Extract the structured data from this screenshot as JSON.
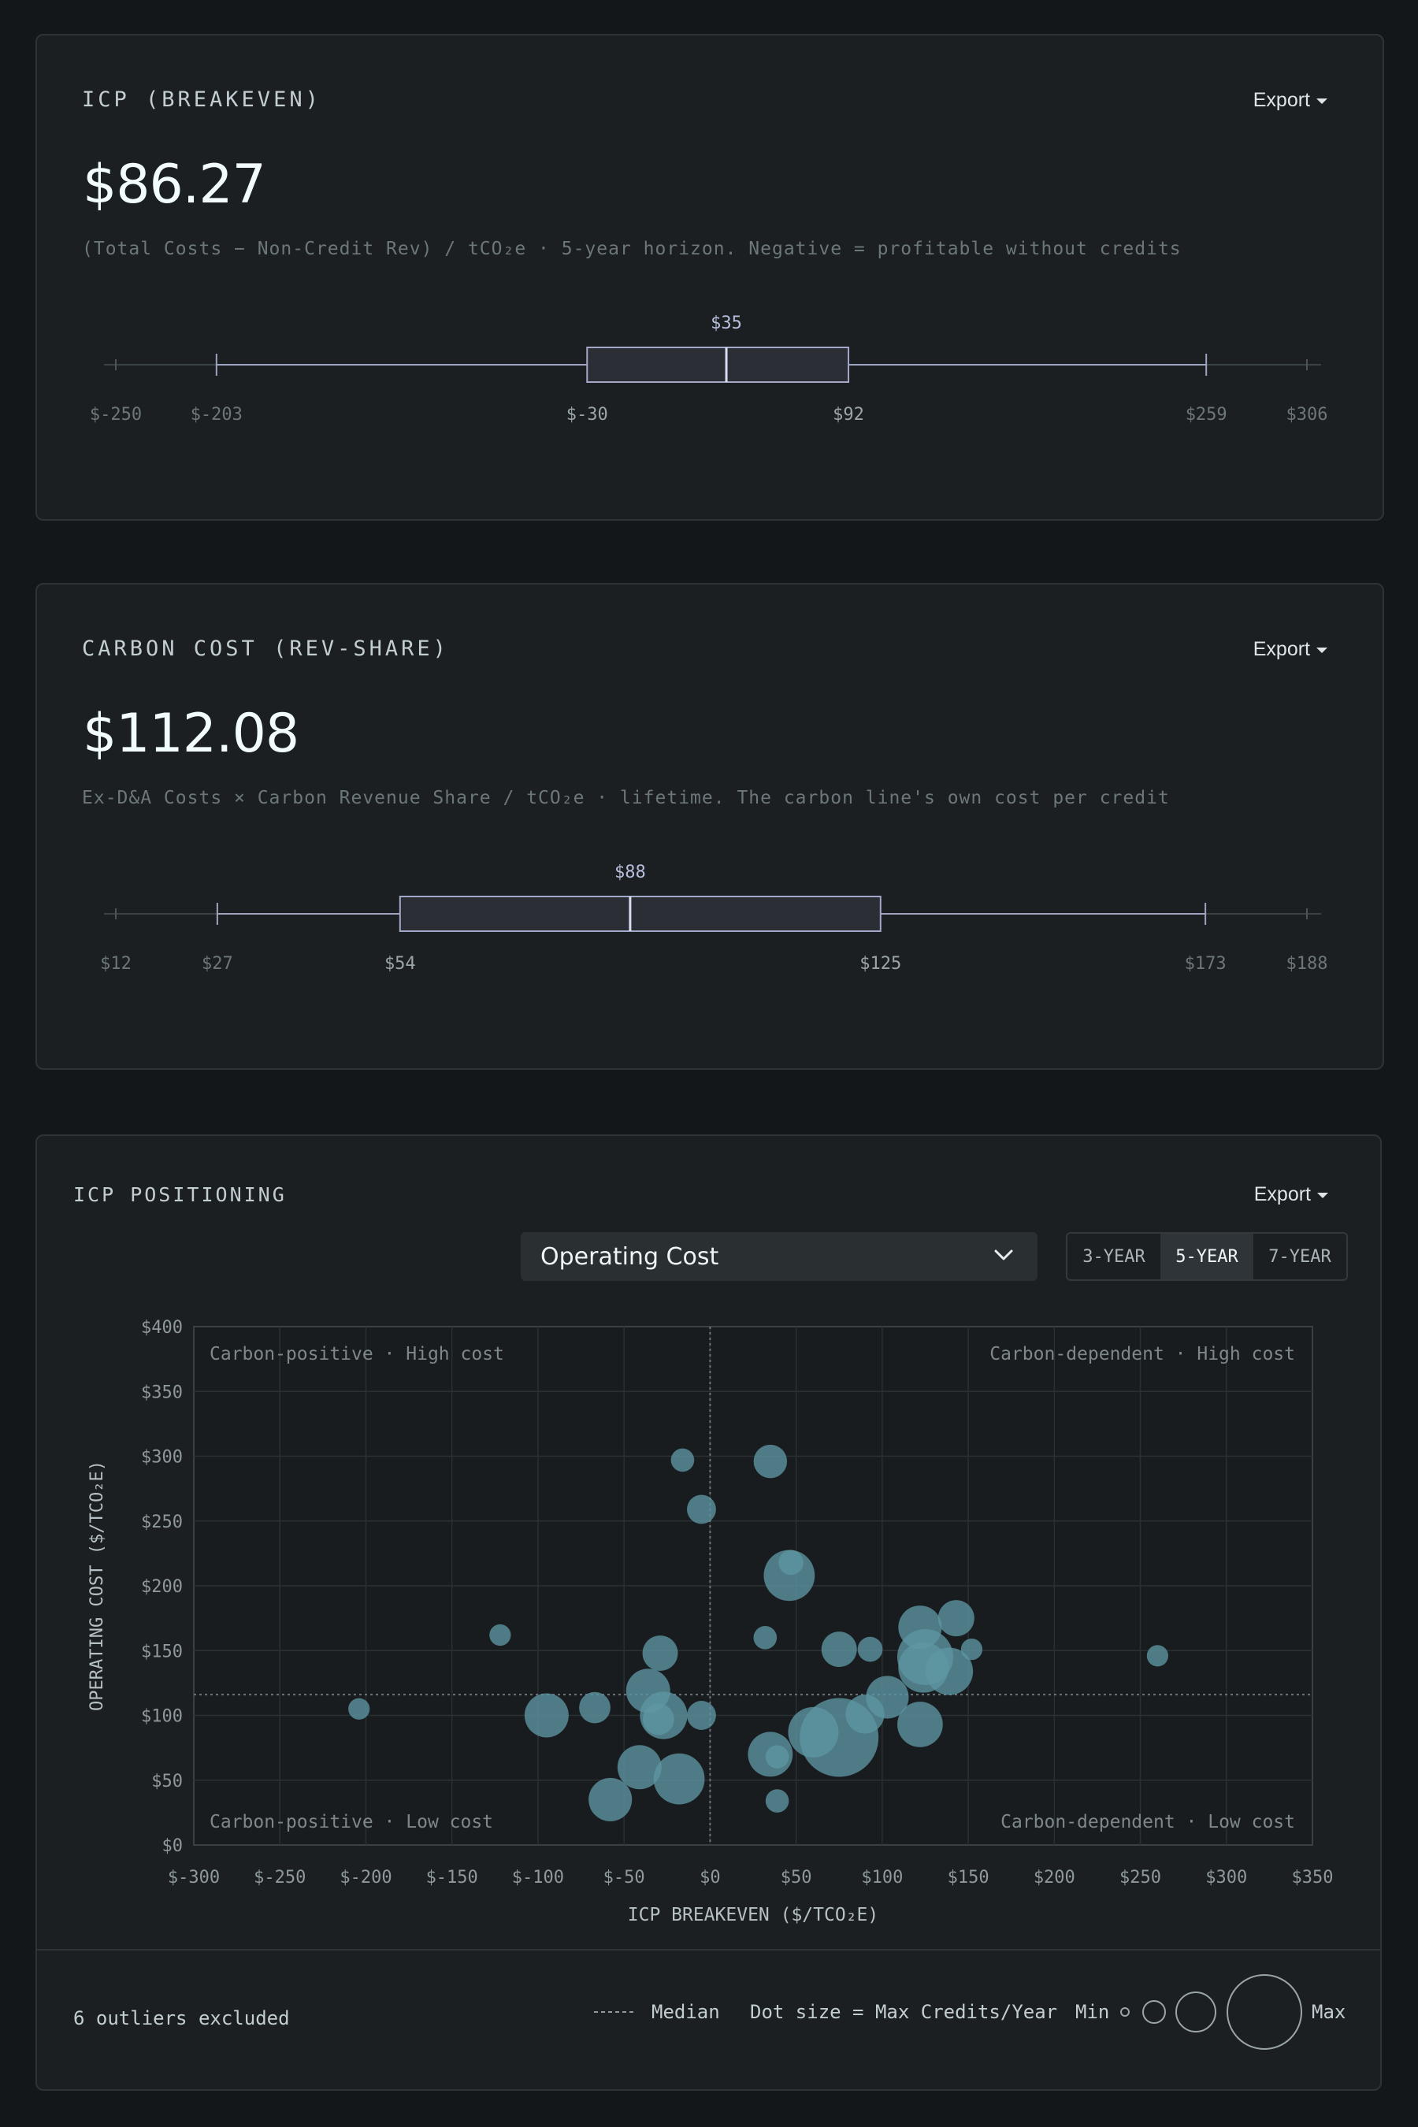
{
  "card1": {
    "title": "ICP (BREAKEVEN)",
    "export_label": "Export",
    "value": "$86.27",
    "subtitle": "(Total Costs − Non-Credit Rev) / tCO₂e · 5-year horizon. Negative = profitable without credits"
  },
  "card2": {
    "title": "CARBON COST (REV-SHARE)",
    "export_label": "Export",
    "value": "$112.08",
    "subtitle": "Ex-D&A Costs × Carbon Revenue Share / tCO₂e · lifetime. The carbon line's own cost per credit"
  },
  "card3": {
    "title": "ICP POSITIONING",
    "export_label": "Export",
    "dropdown_value": "Operating Cost",
    "horizons": [
      "3-YEAR",
      "5-YEAR",
      "7-YEAR"
    ],
    "active_horizon": "5-YEAR",
    "outliers_text": "6 outliers excluded",
    "legend": {
      "median_label": "Median",
      "size_label": "Dot size = Max Credits/Year",
      "min_label": "Min",
      "max_label": "Max"
    }
  },
  "chart_data": [
    {
      "type": "boxplot",
      "title": "ICP (BREAKEVEN)",
      "min": -250,
      "whisker_low": -203,
      "q1": -30,
      "median": 35,
      "q3": 92,
      "whisker_high": 259,
      "max": 306,
      "tick_labels": [
        "$-250",
        "$-203",
        "$-30",
        "$92",
        "$259",
        "$306"
      ],
      "median_label": "$35"
    },
    {
      "type": "boxplot",
      "title": "CARBON COST (REV-SHARE)",
      "min": 12,
      "whisker_low": 27,
      "q1": 54,
      "median": 88,
      "q3": 125,
      "whisker_high": 173,
      "max": 188,
      "tick_labels": [
        "$12",
        "$27",
        "$54",
        "$125",
        "$173",
        "$188"
      ],
      "median_label": "$88"
    },
    {
      "type": "scatter",
      "title": "ICP POSITIONING",
      "xlabel": "ICP BREAKEVEN ($/TCO₂E)",
      "ylabel": "OPERATING COST ($/TCO₂E)",
      "xlim": [
        -300,
        350
      ],
      "ylim": [
        0,
        400
      ],
      "xticks": [
        -300,
        -250,
        -200,
        -150,
        -100,
        -50,
        0,
        50,
        100,
        150,
        200,
        250,
        300,
        350
      ],
      "xtick_labels": [
        "$-300",
        "$-250",
        "$-200",
        "$-150",
        "$-100",
        "$-50",
        "$0",
        "$50",
        "$100",
        "$150",
        "$200",
        "$250",
        "$300",
        "$350"
      ],
      "yticks": [
        0,
        50,
        100,
        150,
        200,
        250,
        300,
        350,
        400
      ],
      "ytick_labels": [
        "$0",
        "$50",
        "$100",
        "$150",
        "$200",
        "$250",
        "$300",
        "$350",
        "$400"
      ],
      "grid": true,
      "median_x": 0,
      "median_y": 116,
      "quadrants": {
        "top_left": "Carbon-positive · High cost",
        "top_right": "Carbon-dependent · High cost",
        "bottom_left": "Carbon-positive · Low cost",
        "bottom_right": "Carbon-dependent · Low cost"
      },
      "color": "#5e96a3",
      "points": [
        {
          "x": -204,
          "y": 105,
          "s": 0.03
        },
        {
          "x": -122,
          "y": 162,
          "s": 0.03
        },
        {
          "x": -95,
          "y": 100,
          "s": 0.25
        },
        {
          "x": -67,
          "y": 106,
          "s": 0.1
        },
        {
          "x": -58,
          "y": 35,
          "s": 0.24
        },
        {
          "x": -41,
          "y": 60,
          "s": 0.25
        },
        {
          "x": -36,
          "y": 119,
          "s": 0.25
        },
        {
          "x": -29,
          "y": 148,
          "s": 0.14
        },
        {
          "x": -27,
          "y": 100,
          "s": 0.3
        },
        {
          "x": -30,
          "y": 97,
          "s": 0.1
        },
        {
          "x": -18,
          "y": 51,
          "s": 0.36
        },
        {
          "x": -16,
          "y": 297,
          "s": 0.04
        },
        {
          "x": -5,
          "y": 259,
          "s": 0.08
        },
        {
          "x": -5,
          "y": 100,
          "s": 0.08
        },
        {
          "x": 32,
          "y": 160,
          "s": 0.04
        },
        {
          "x": 35,
          "y": 296,
          "s": 0.12
        },
        {
          "x": 35,
          "y": 70,
          "s": 0.26
        },
        {
          "x": 39,
          "y": 68,
          "s": 0.04
        },
        {
          "x": 39,
          "y": 34,
          "s": 0.04
        },
        {
          "x": 46,
          "y": 208,
          "s": 0.36
        },
        {
          "x": 47,
          "y": 218,
          "s": 0.05
        },
        {
          "x": 60,
          "y": 87,
          "s": 0.35
        },
        {
          "x": 75,
          "y": 83,
          "s": 1.0
        },
        {
          "x": 75,
          "y": 151,
          "s": 0.14
        },
        {
          "x": 90,
          "y": 101,
          "s": 0.18
        },
        {
          "x": 93,
          "y": 151,
          "s": 0.05
        },
        {
          "x": 103,
          "y": 114,
          "s": 0.23
        },
        {
          "x": 122,
          "y": 93,
          "s": 0.27
        },
        {
          "x": 122,
          "y": 168,
          "s": 0.24
        },
        {
          "x": 125,
          "y": 145,
          "s": 0.45
        },
        {
          "x": 124,
          "y": 137,
          "s": 0.35
        },
        {
          "x": 139,
          "y": 134,
          "s": 0.3
        },
        {
          "x": 143,
          "y": 175,
          "s": 0.15
        },
        {
          "x": 152,
          "y": 151,
          "s": 0.03
        },
        {
          "x": 260,
          "y": 146,
          "s": 0.03
        }
      ]
    }
  ]
}
